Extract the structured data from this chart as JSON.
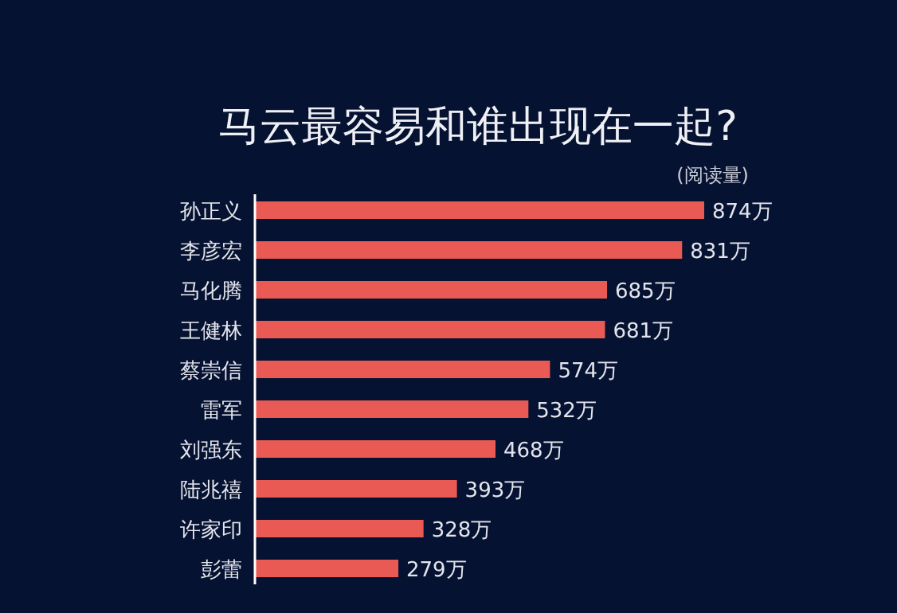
{
  "chart_data": {
    "type": "bar",
    "orientation": "horizontal",
    "title": "马云最容易和谁出现在一起?",
    "subtitle": "(阅读量)",
    "categories": [
      "孙正义",
      "李彦宏",
      "马化腾",
      "王健林",
      "蔡崇信",
      "雷军",
      "刘强东",
      "陆兆禧",
      "许家印",
      "彭蕾"
    ],
    "values": [
      874,
      831,
      685,
      681,
      574,
      532,
      468,
      393,
      328,
      279
    ],
    "value_labels": [
      "874万",
      "831万",
      "685万",
      "681万",
      "574万",
      "532万",
      "468万",
      "393万",
      "328万",
      "279万"
    ],
    "color": "#ea5a55",
    "grid": false,
    "legend": false
  }
}
